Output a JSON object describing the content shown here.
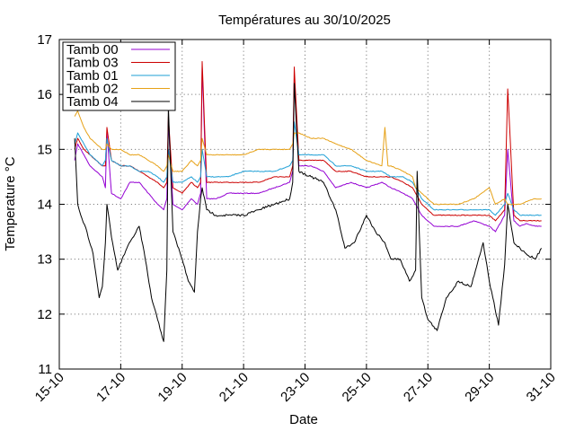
{
  "chart_data": {
    "type": "line",
    "title": "Températures  au 30/10/2025",
    "xlabel": "Date",
    "ylabel": "Temperature °C",
    "ylim": [
      11,
      17
    ],
    "yticks": [
      11,
      12,
      13,
      14,
      15,
      16,
      17
    ],
    "xlim_days": [
      15,
      31
    ],
    "xticks": [
      {
        "day": 15,
        "label": "15-10"
      },
      {
        "day": 17,
        "label": "17-10"
      },
      {
        "day": 19,
        "label": "19-10"
      },
      {
        "day": 21,
        "label": "21-10"
      },
      {
        "day": 23,
        "label": "23-10"
      },
      {
        "day": 25,
        "label": "25-10"
      },
      {
        "day": 27,
        "label": "27-10"
      },
      {
        "day": 29,
        "label": "29-10"
      },
      {
        "day": 31,
        "label": "31-10"
      }
    ],
    "grid": true,
    "legend_position": "top-left",
    "series": [
      {
        "name": "Tamb 00",
        "color": "#9400d3",
        "x": [
          15.5,
          15.6,
          15.8,
          16.0,
          16.2,
          16.4,
          16.5,
          16.55,
          16.7,
          17.0,
          17.3,
          17.6,
          17.9,
          18.2,
          18.4,
          18.5,
          18.55,
          18.7,
          19.0,
          19.3,
          19.5,
          19.6,
          19.65,
          19.8,
          20.1,
          20.5,
          21.0,
          21.5,
          22.0,
          22.5,
          22.6,
          22.65,
          22.8,
          23.2,
          23.6,
          24.0,
          24.5,
          25.0,
          25.5,
          25.8,
          26.2,
          26.5,
          26.6,
          26.8,
          27.2,
          27.6,
          28.0,
          28.5,
          29.0,
          29.2,
          29.5,
          29.6,
          29.8,
          30.0,
          30.2,
          30.5,
          30.7
        ],
        "y": [
          14.8,
          15.1,
          14.9,
          14.7,
          14.6,
          14.5,
          14.3,
          15.3,
          14.2,
          14.1,
          14.4,
          14.4,
          14.2,
          14.0,
          13.9,
          14.1,
          15.5,
          14.0,
          13.9,
          14.1,
          14.0,
          14.2,
          16.5,
          14.1,
          14.1,
          14.2,
          14.2,
          14.2,
          14.3,
          14.4,
          14.6,
          16.3,
          14.7,
          14.7,
          14.6,
          14.3,
          14.4,
          14.3,
          14.4,
          14.3,
          14.2,
          14.1,
          14.0,
          13.8,
          13.6,
          13.6,
          13.6,
          13.7,
          13.6,
          13.5,
          13.8,
          15.0,
          13.7,
          13.6,
          13.65,
          13.6,
          13.6
        ]
      },
      {
        "name": "Tamb 03",
        "color": "#cc0000",
        "x": [
          15.5,
          15.6,
          15.8,
          16.0,
          16.2,
          16.4,
          16.5,
          16.55,
          16.7,
          17.0,
          17.3,
          17.6,
          17.9,
          18.2,
          18.4,
          18.5,
          18.55,
          18.7,
          19.0,
          19.3,
          19.5,
          19.6,
          19.65,
          19.8,
          20.1,
          20.5,
          21.0,
          21.5,
          22.0,
          22.5,
          22.6,
          22.65,
          22.8,
          23.2,
          23.6,
          24.0,
          24.5,
          25.0,
          25.5,
          25.8,
          26.2,
          26.5,
          26.6,
          26.8,
          27.2,
          27.6,
          28.0,
          28.5,
          29.0,
          29.2,
          29.5,
          29.6,
          29.8,
          30.0,
          30.2,
          30.5,
          30.7
        ],
        "y": [
          15.0,
          15.2,
          15.0,
          14.9,
          14.8,
          14.7,
          14.7,
          15.4,
          14.8,
          14.7,
          14.7,
          14.6,
          14.5,
          14.4,
          14.3,
          14.4,
          15.6,
          14.3,
          14.2,
          14.4,
          14.3,
          14.4,
          16.6,
          14.4,
          14.4,
          14.4,
          14.4,
          14.4,
          14.5,
          14.5,
          14.7,
          16.5,
          14.8,
          14.8,
          14.8,
          14.6,
          14.6,
          14.5,
          14.5,
          14.5,
          14.4,
          14.3,
          14.2,
          14.0,
          13.8,
          13.8,
          13.8,
          13.8,
          13.8,
          13.7,
          13.9,
          16.1,
          13.8,
          13.7,
          13.7,
          13.7,
          13.7
        ]
      },
      {
        "name": "Tamb 01",
        "color": "#1e9fd6",
        "x": [
          15.5,
          15.6,
          15.8,
          16.0,
          16.2,
          16.4,
          16.5,
          16.55,
          16.7,
          17.0,
          17.3,
          17.6,
          17.9,
          18.2,
          18.4,
          18.5,
          18.55,
          18.7,
          19.0,
          19.3,
          19.5,
          19.6,
          19.65,
          19.8,
          20.1,
          20.5,
          21.0,
          21.5,
          22.0,
          22.5,
          22.6,
          22.65,
          22.8,
          23.2,
          23.6,
          24.0,
          24.5,
          25.0,
          25.5,
          25.8,
          26.2,
          26.5,
          26.6,
          26.8,
          27.2,
          27.6,
          28.0,
          28.5,
          29.0,
          29.2,
          29.5,
          29.6,
          29.8,
          30.0,
          30.2,
          30.5,
          30.7
        ],
        "y": [
          15.1,
          15.3,
          15.1,
          14.9,
          14.8,
          14.7,
          14.8,
          15.2,
          14.8,
          14.7,
          14.7,
          14.6,
          14.6,
          14.5,
          14.4,
          14.5,
          15.0,
          14.4,
          14.4,
          14.5,
          14.4,
          14.5,
          15.0,
          14.5,
          14.5,
          14.5,
          14.6,
          14.6,
          14.6,
          14.7,
          14.8,
          15.5,
          14.9,
          14.9,
          14.9,
          14.7,
          14.7,
          14.6,
          14.6,
          14.5,
          14.5,
          14.4,
          14.3,
          14.1,
          13.9,
          13.9,
          13.9,
          13.9,
          13.9,
          13.8,
          14.0,
          14.2,
          13.9,
          13.8,
          13.8,
          13.8,
          13.8
        ]
      },
      {
        "name": "Tamb 02",
        "color": "#e6a117",
        "x": [
          15.5,
          15.6,
          15.8,
          16.0,
          16.2,
          16.4,
          16.5,
          16.55,
          16.7,
          17.0,
          17.3,
          17.6,
          17.9,
          18.2,
          18.4,
          18.5,
          18.55,
          18.7,
          19.0,
          19.3,
          19.5,
          19.6,
          19.65,
          19.8,
          20.1,
          20.5,
          21.0,
          21.5,
          22.0,
          22.5,
          22.6,
          22.65,
          22.8,
          23.2,
          23.6,
          24.0,
          24.5,
          25.0,
          25.5,
          25.6,
          25.7,
          25.8,
          26.2,
          26.5,
          26.6,
          26.8,
          27.2,
          27.6,
          28.0,
          28.5,
          29.0,
          29.2,
          29.5,
          29.6,
          29.8,
          30.0,
          30.2,
          30.5,
          30.7
        ],
        "y": [
          15.6,
          15.7,
          15.4,
          15.2,
          15.1,
          15.0,
          15.0,
          15.1,
          15.0,
          15.0,
          14.9,
          14.9,
          14.8,
          14.7,
          14.6,
          14.7,
          14.9,
          14.6,
          14.6,
          14.8,
          14.7,
          14.8,
          15.2,
          14.9,
          14.9,
          14.9,
          14.9,
          15.0,
          15.0,
          15.0,
          15.1,
          15.3,
          15.3,
          15.2,
          15.2,
          15.1,
          15.0,
          14.8,
          14.7,
          15.4,
          14.7,
          14.7,
          14.6,
          14.5,
          14.3,
          14.2,
          14.0,
          14.0,
          14.0,
          14.1,
          14.3,
          14.0,
          14.1,
          14.0,
          14.0,
          14.0,
          14.05,
          14.1,
          14.1
        ]
      },
      {
        "name": "Tamb 04",
        "color": "#000000",
        "x": [
          15.5,
          15.6,
          15.7,
          15.9,
          16.1,
          16.3,
          16.4,
          16.5,
          16.55,
          16.7,
          16.9,
          17.2,
          17.6,
          17.8,
          18.0,
          18.2,
          18.4,
          18.5,
          18.55,
          18.7,
          19.0,
          19.2,
          19.4,
          19.5,
          19.6,
          19.65,
          19.8,
          20.1,
          20.5,
          21.0,
          21.5,
          22.0,
          22.5,
          22.6,
          22.65,
          22.8,
          23.2,
          23.6,
          24.0,
          24.3,
          24.6,
          25.0,
          25.3,
          25.6,
          25.8,
          26.1,
          26.4,
          26.6,
          26.65,
          26.8,
          27.0,
          27.3,
          27.6,
          28.0,
          28.4,
          28.8,
          29.0,
          29.3,
          29.5,
          29.6,
          29.8,
          30.0,
          30.2,
          30.5,
          30.7
        ],
        "y": [
          15.2,
          14.0,
          13.8,
          13.5,
          13.1,
          12.3,
          12.5,
          13.3,
          14.0,
          13.4,
          12.8,
          13.2,
          13.6,
          13.0,
          12.3,
          11.9,
          11.5,
          12.8,
          15.8,
          13.5,
          13.0,
          12.6,
          12.4,
          13.5,
          14.1,
          14.3,
          13.9,
          13.8,
          13.8,
          13.8,
          13.9,
          14.0,
          14.1,
          14.4,
          16.2,
          14.6,
          14.5,
          14.4,
          13.9,
          13.2,
          13.3,
          13.8,
          13.5,
          13.3,
          13.0,
          13.0,
          12.6,
          12.8,
          14.6,
          12.3,
          11.9,
          11.7,
          12.3,
          12.6,
          12.5,
          13.3,
          12.6,
          11.8,
          12.9,
          14.0,
          13.3,
          13.2,
          13.1,
          13.0,
          13.2
        ]
      }
    ]
  }
}
